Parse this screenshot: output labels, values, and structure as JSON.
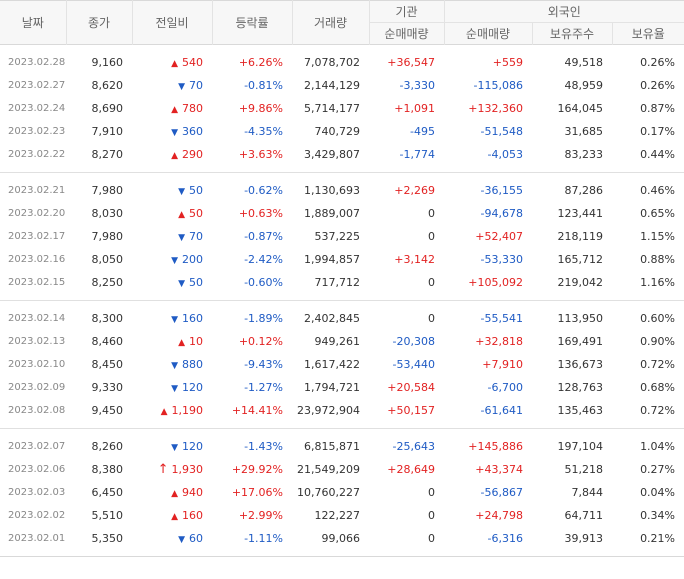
{
  "headers": {
    "date": "날짜",
    "close": "종가",
    "change": "전일비",
    "rate": "등락률",
    "volume": "거래량",
    "institution": "기관",
    "foreign": "외국인",
    "inst_net": "순매매량",
    "foreign_net": "순매매량",
    "holdings": "보유주수",
    "ratio": "보유율"
  },
  "colors": {
    "up": "#e22222",
    "down": "#1f5bc4"
  },
  "groups": [
    {
      "rows": [
        {
          "date": "2023.02.28",
          "close": "9,160",
          "dir": "up",
          "change": "540",
          "rate": "+6.26%",
          "volume": "7,078,702",
          "inst": "+36,547",
          "foreign": "+559",
          "holdings": "49,518",
          "ratio": "0.26%"
        },
        {
          "date": "2023.02.27",
          "close": "8,620",
          "dir": "down",
          "change": "70",
          "rate": "-0.81%",
          "volume": "2,144,129",
          "inst": "-3,330",
          "foreign": "-115,086",
          "holdings": "48,959",
          "ratio": "0.26%"
        },
        {
          "date": "2023.02.24",
          "close": "8,690",
          "dir": "up",
          "change": "780",
          "rate": "+9.86%",
          "volume": "5,714,177",
          "inst": "+1,091",
          "foreign": "+132,360",
          "holdings": "164,045",
          "ratio": "0.87%"
        },
        {
          "date": "2023.02.23",
          "close": "7,910",
          "dir": "down",
          "change": "360",
          "rate": "-4.35%",
          "volume": "740,729",
          "inst": "-495",
          "foreign": "-51,548",
          "holdings": "31,685",
          "ratio": "0.17%"
        },
        {
          "date": "2023.02.22",
          "close": "8,270",
          "dir": "up",
          "change": "290",
          "rate": "+3.63%",
          "volume": "3,429,807",
          "inst": "-1,774",
          "foreign": "-4,053",
          "holdings": "83,233",
          "ratio": "0.44%"
        }
      ]
    },
    {
      "rows": [
        {
          "date": "2023.02.21",
          "close": "7,980",
          "dir": "down",
          "change": "50",
          "rate": "-0.62%",
          "volume": "1,130,693",
          "inst": "+2,269",
          "foreign": "-36,155",
          "holdings": "87,286",
          "ratio": "0.46%"
        },
        {
          "date": "2023.02.20",
          "close": "8,030",
          "dir": "up",
          "change": "50",
          "rate": "+0.63%",
          "volume": "1,889,007",
          "inst": "0",
          "foreign": "-94,678",
          "holdings": "123,441",
          "ratio": "0.65%"
        },
        {
          "date": "2023.02.17",
          "close": "7,980",
          "dir": "down",
          "change": "70",
          "rate": "-0.87%",
          "volume": "537,225",
          "inst": "0",
          "foreign": "+52,407",
          "holdings": "218,119",
          "ratio": "1.15%"
        },
        {
          "date": "2023.02.16",
          "close": "8,050",
          "dir": "down",
          "change": "200",
          "rate": "-2.42%",
          "volume": "1,994,857",
          "inst": "+3,142",
          "foreign": "-53,330",
          "holdings": "165,712",
          "ratio": "0.88%"
        },
        {
          "date": "2023.02.15",
          "close": "8,250",
          "dir": "down",
          "change": "50",
          "rate": "-0.60%",
          "volume": "717,712",
          "inst": "0",
          "foreign": "+105,092",
          "holdings": "219,042",
          "ratio": "1.16%"
        }
      ]
    },
    {
      "rows": [
        {
          "date": "2023.02.14",
          "close": "8,300",
          "dir": "down",
          "change": "160",
          "rate": "-1.89%",
          "volume": "2,402,845",
          "inst": "0",
          "foreign": "-55,541",
          "holdings": "113,950",
          "ratio": "0.60%"
        },
        {
          "date": "2023.02.13",
          "close": "8,460",
          "dir": "up",
          "change": "10",
          "rate": "+0.12%",
          "volume": "949,261",
          "inst": "-20,308",
          "foreign": "+32,818",
          "holdings": "169,491",
          "ratio": "0.90%"
        },
        {
          "date": "2023.02.10",
          "close": "8,450",
          "dir": "down",
          "change": "880",
          "rate": "-9.43%",
          "volume": "1,617,422",
          "inst": "-53,440",
          "foreign": "+7,910",
          "holdings": "136,673",
          "ratio": "0.72%"
        },
        {
          "date": "2023.02.09",
          "close": "9,330",
          "dir": "down",
          "change": "120",
          "rate": "-1.27%",
          "volume": "1,794,721",
          "inst": "+20,584",
          "foreign": "-6,700",
          "holdings": "128,763",
          "ratio": "0.68%"
        },
        {
          "date": "2023.02.08",
          "close": "9,450",
          "dir": "up",
          "change": "1,190",
          "rate": "+14.41%",
          "volume": "23,972,904",
          "inst": "+50,157",
          "foreign": "-61,641",
          "holdings": "135,463",
          "ratio": "0.72%"
        }
      ]
    },
    {
      "rows": [
        {
          "date": "2023.02.07",
          "close": "8,260",
          "dir": "down",
          "change": "120",
          "rate": "-1.43%",
          "volume": "6,815,871",
          "inst": "-25,643",
          "foreign": "+145,886",
          "holdings": "197,104",
          "ratio": "1.04%"
        },
        {
          "date": "2023.02.06",
          "close": "8,380",
          "dir": "upper",
          "change": "1,930",
          "rate": "+29.92%",
          "volume": "21,549,209",
          "inst": "+28,649",
          "foreign": "+43,374",
          "holdings": "51,218",
          "ratio": "0.27%"
        },
        {
          "date": "2023.02.03",
          "close": "6,450",
          "dir": "up",
          "change": "940",
          "rate": "+17.06%",
          "volume": "10,760,227",
          "inst": "0",
          "foreign": "-56,867",
          "holdings": "7,844",
          "ratio": "0.04%"
        },
        {
          "date": "2023.02.02",
          "close": "5,510",
          "dir": "up",
          "change": "160",
          "rate": "+2.99%",
          "volume": "122,227",
          "inst": "0",
          "foreign": "+24,798",
          "holdings": "64,711",
          "ratio": "0.34%"
        },
        {
          "date": "2023.02.01",
          "close": "5,350",
          "dir": "down",
          "change": "60",
          "rate": "-1.11%",
          "volume": "99,066",
          "inst": "0",
          "foreign": "-6,316",
          "holdings": "39,913",
          "ratio": "0.21%"
        }
      ]
    }
  ]
}
